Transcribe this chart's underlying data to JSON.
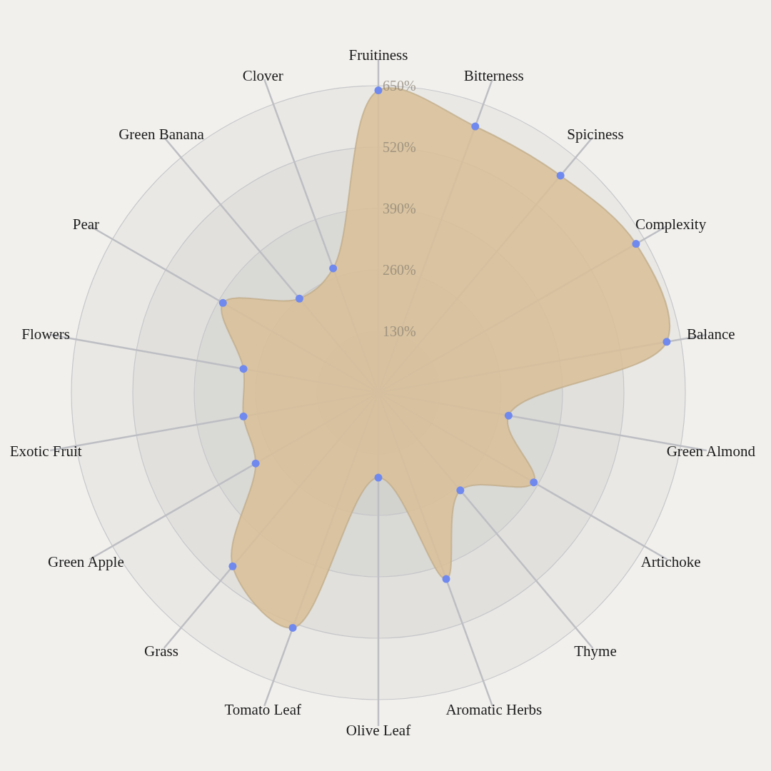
{
  "chart_data": {
    "type": "radar",
    "categories": [
      "Fruitiness",
      "Bitterness",
      "Spiciness",
      "Complexity",
      "Balance",
      "Green Almond",
      "Artichoke",
      "Thyme",
      "Aromatic Herbs",
      "Olive Leaf",
      "Tomato Leaf",
      "Grass",
      "Green Apple",
      "Exotic Fruit",
      "Flowers",
      "Pear",
      "Green Banana",
      "Clover"
    ],
    "series": [
      {
        "color": "#d8bf98",
        "values": [
          640,
          600,
          600,
          630,
          620,
          280,
          380,
          270,
          420,
          180,
          530,
          480,
          300,
          290,
          290,
          380,
          260,
          280
        ]
      }
    ],
    "ylim": [
      0,
      650
    ],
    "yticks": [
      {
        "value": 130,
        "label": "130%"
      },
      {
        "value": 260,
        "label": "260%"
      },
      {
        "value": 390,
        "label": "390%"
      },
      {
        "value": 520,
        "label": "520%"
      },
      {
        "value": 650,
        "label": "650%"
      }
    ],
    "grid": true,
    "marker": "circle"
  }
}
